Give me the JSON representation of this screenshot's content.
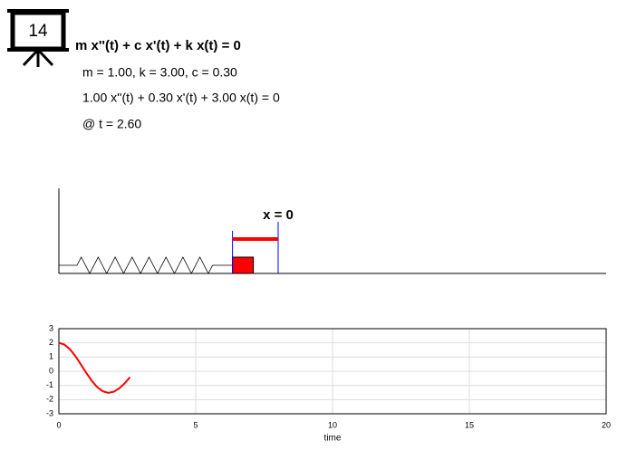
{
  "icon": {
    "label": "14"
  },
  "equation": "m x''(t) + c x'(t) + k x(t) = 0",
  "params": "m = 1.00, k = 3.00, c = 0.30",
  "instance": "1.00 x''(t) + 0.30 x'(t) + 3.00 x(t) = 0",
  "time": "@ t = 2.60",
  "spring": {
    "label": "x = 0"
  },
  "chart_data": {
    "type": "line",
    "xlabel": "time",
    "x": [
      0,
      0.2,
      0.4,
      0.6,
      0.8,
      1.0,
      1.2,
      1.4,
      1.6,
      1.8,
      2.0,
      2.2,
      2.4,
      2.6
    ],
    "series": [
      {
        "color": "#ff0000",
        "values": [
          2.0,
          1.88,
          1.56,
          1.07,
          0.49,
          -0.12,
          -0.67,
          -1.12,
          -1.41,
          -1.52,
          -1.45,
          -1.22,
          -0.86,
          -0.42
        ]
      }
    ],
    "xlim": [
      0,
      20
    ],
    "xticks": [
      0,
      5,
      10,
      15,
      20
    ],
    "ylim": [
      -3,
      3
    ],
    "yticks": [
      -3,
      -2,
      -1,
      0,
      1,
      2,
      3
    ],
    "grid": true
  }
}
